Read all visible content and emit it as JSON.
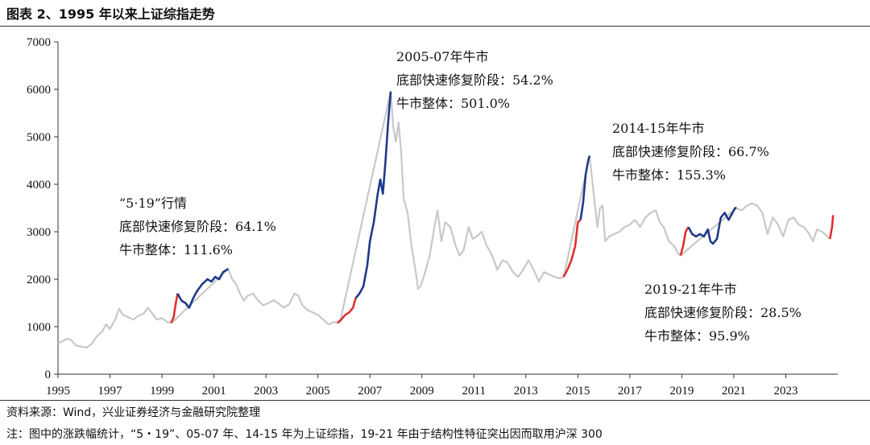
{
  "figure_title": "图表 2、1995 年以来上证综指走势",
  "source_text": "资料来源：Wind，兴业证券经济与金融研究院整理",
  "note_text": "注：图中的涨跌幅统计，“5・19”、05-07 年、14-15 年为上证综指，19-21 年由于结构性特征突出因而取用沪深 300",
  "colors": {
    "base": "#c8c8c8",
    "rapid": "#e03030",
    "bull": "#1f3a8a",
    "axis": "#333333"
  },
  "chart_data": {
    "type": "line",
    "title": "",
    "xlabel": "",
    "ylabel": "",
    "xlim": [
      1995,
      2025
    ],
    "ylim": [
      0,
      7000
    ],
    "yticks": [
      0,
      1000,
      2000,
      3000,
      4000,
      5000,
      6000,
      7000
    ],
    "ytick_labels": [
      "0",
      "1000",
      "2000",
      "3000",
      "4000",
      "5000",
      "6000",
      "7000"
    ],
    "xticks": [
      1995,
      1997,
      1999,
      2001,
      2003,
      2005,
      2007,
      2009,
      2011,
      2013,
      2015,
      2017,
      2019,
      2021,
      2023
    ],
    "xtick_labels": [
      "1995",
      "1997",
      "1999",
      "2001",
      "2003",
      "2005",
      "2007",
      "2009",
      "2011",
      "2013",
      "2015",
      "2017",
      "2019",
      "2021",
      "2023"
    ],
    "grid": false,
    "series": [
      {
        "role": "index",
        "points": [
          [
            1995.0,
            650
          ],
          [
            1995.2,
            700
          ],
          [
            1995.35,
            750
          ],
          [
            1995.5,
            720
          ],
          [
            1995.7,
            600
          ],
          [
            1995.9,
            580
          ],
          [
            1996.1,
            560
          ],
          [
            1996.3,
            640
          ],
          [
            1996.5,
            800
          ],
          [
            1996.7,
            900
          ],
          [
            1996.85,
            1050
          ],
          [
            1997.0,
            950
          ],
          [
            1997.2,
            1150
          ],
          [
            1997.35,
            1380
          ],
          [
            1997.5,
            1250
          ],
          [
            1997.7,
            1200
          ],
          [
            1997.9,
            1150
          ],
          [
            1998.1,
            1230
          ],
          [
            1998.3,
            1280
          ],
          [
            1998.45,
            1400
          ],
          [
            1998.6,
            1300
          ],
          [
            1998.8,
            1150
          ],
          [
            1999.0,
            1180
          ],
          [
            1999.2,
            1100
          ],
          [
            1999.35,
            1080
          ],
          [
            1999.45,
            1120
          ],
          [
            2001.55,
            2220
          ],
          [
            2001.7,
            2000
          ],
          [
            2001.85,
            1900
          ],
          [
            2002.0,
            1700
          ],
          [
            2002.15,
            1550
          ],
          [
            2002.3,
            1650
          ],
          [
            2002.5,
            1700
          ],
          [
            2002.7,
            1550
          ],
          [
            2002.9,
            1450
          ],
          [
            2003.1,
            1500
          ],
          [
            2003.3,
            1560
          ],
          [
            2003.5,
            1480
          ],
          [
            2003.7,
            1400
          ],
          [
            2003.9,
            1480
          ],
          [
            2004.1,
            1700
          ],
          [
            2004.25,
            1650
          ],
          [
            2004.4,
            1450
          ],
          [
            2004.6,
            1350
          ],
          [
            2004.8,
            1300
          ],
          [
            2005.0,
            1250
          ],
          [
            2005.2,
            1150
          ],
          [
            2005.4,
            1050
          ],
          [
            2005.6,
            1100
          ],
          [
            2005.75,
            1080
          ],
          [
            2005.85,
            1100
          ],
          [
            2007.8,
            5950
          ],
          [
            2007.9,
            5200
          ],
          [
            2008.0,
            4900
          ],
          [
            2008.1,
            5300
          ],
          [
            2008.2,
            4700
          ],
          [
            2008.3,
            3700
          ],
          [
            2008.45,
            3400
          ],
          [
            2008.6,
            2700
          ],
          [
            2008.75,
            2200
          ],
          [
            2008.85,
            1800
          ],
          [
            2008.95,
            1850
          ],
          [
            2009.1,
            2100
          ],
          [
            2009.3,
            2500
          ],
          [
            2009.45,
            3000
          ],
          [
            2009.6,
            3450
          ],
          [
            2009.75,
            2800
          ],
          [
            2009.9,
            3200
          ],
          [
            2010.1,
            3100
          ],
          [
            2010.3,
            2700
          ],
          [
            2010.45,
            2500
          ],
          [
            2010.6,
            2600
          ],
          [
            2010.8,
            3100
          ],
          [
            2010.95,
            2850
          ],
          [
            2011.1,
            2900
          ],
          [
            2011.3,
            3000
          ],
          [
            2011.5,
            2700
          ],
          [
            2011.7,
            2500
          ],
          [
            2011.9,
            2200
          ],
          [
            2012.1,
            2400
          ],
          [
            2012.3,
            2350
          ],
          [
            2012.5,
            2150
          ],
          [
            2012.7,
            2050
          ],
          [
            2012.9,
            2200
          ],
          [
            2013.1,
            2400
          ],
          [
            2013.3,
            2200
          ],
          [
            2013.5,
            1950
          ],
          [
            2013.7,
            2150
          ],
          [
            2013.9,
            2100
          ],
          [
            2014.1,
            2050
          ],
          [
            2014.3,
            2020
          ],
          [
            2014.45,
            2050
          ],
          [
            2015.45,
            4600
          ],
          [
            2015.55,
            4100
          ],
          [
            2015.65,
            3600
          ],
          [
            2015.75,
            3100
          ],
          [
            2015.85,
            3500
          ],
          [
            2015.95,
            3550
          ],
          [
            2016.05,
            2800
          ],
          [
            2016.2,
            2900
          ],
          [
            2016.4,
            2950
          ],
          [
            2016.6,
            3000
          ],
          [
            2016.8,
            3100
          ],
          [
            2017.0,
            3150
          ],
          [
            2017.2,
            3250
          ],
          [
            2017.4,
            3100
          ],
          [
            2017.6,
            3300
          ],
          [
            2017.8,
            3400
          ],
          [
            2018.0,
            3450
          ],
          [
            2018.15,
            3200
          ],
          [
            2018.3,
            3100
          ],
          [
            2018.5,
            2800
          ],
          [
            2018.7,
            2700
          ],
          [
            2018.85,
            2550
          ],
          [
            2018.95,
            2500
          ],
          [
            2021.1,
            3500
          ],
          [
            2021.3,
            3450
          ],
          [
            2021.5,
            3550
          ],
          [
            2021.7,
            3600
          ],
          [
            2021.9,
            3550
          ],
          [
            2022.1,
            3400
          ],
          [
            2022.3,
            2950
          ],
          [
            2022.5,
            3300
          ],
          [
            2022.7,
            3150
          ],
          [
            2022.9,
            2900
          ],
          [
            2023.1,
            3250
          ],
          [
            2023.3,
            3300
          ],
          [
            2023.5,
            3150
          ],
          [
            2023.7,
            3100
          ],
          [
            2023.9,
            2950
          ],
          [
            2024.05,
            2800
          ],
          [
            2024.2,
            3050
          ],
          [
            2024.4,
            3000
          ],
          [
            2024.6,
            2900
          ],
          [
            2024.7,
            2850
          ]
        ]
      },
      {
        "role": "rapid-recovery-1999",
        "points": [
          [
            1999.35,
            1080
          ],
          [
            1999.45,
            1200
          ],
          [
            1999.52,
            1450
          ],
          [
            1999.6,
            1700
          ]
        ]
      },
      {
        "role": "bull-1999",
        "points": [
          [
            1999.6,
            1700
          ],
          [
            1999.75,
            1550
          ],
          [
            1999.9,
            1500
          ],
          [
            2000.05,
            1400
          ],
          [
            2000.2,
            1600
          ],
          [
            2000.35,
            1750
          ],
          [
            2000.55,
            1900
          ],
          [
            2000.75,
            2000
          ],
          [
            2000.9,
            1950
          ],
          [
            2001.05,
            2050
          ],
          [
            2001.2,
            2000
          ],
          [
            2001.35,
            2150
          ],
          [
            2001.5,
            2200
          ],
          [
            2001.55,
            2220
          ]
        ]
      },
      {
        "role": "rapid-recovery-2005",
        "points": [
          [
            2005.75,
            1080
          ],
          [
            2005.9,
            1150
          ],
          [
            2006.05,
            1250
          ],
          [
            2006.2,
            1300
          ],
          [
            2006.35,
            1400
          ],
          [
            2006.45,
            1600
          ]
        ]
      },
      {
        "role": "bull-2005-07",
        "points": [
          [
            2006.45,
            1600
          ],
          [
            2006.6,
            1700
          ],
          [
            2006.75,
            1850
          ],
          [
            2006.9,
            2300
          ],
          [
            2007.0,
            2800
          ],
          [
            2007.15,
            3200
          ],
          [
            2007.3,
            3800
          ],
          [
            2007.4,
            4100
          ],
          [
            2007.5,
            3800
          ],
          [
            2007.6,
            4500
          ],
          [
            2007.7,
            5300
          ],
          [
            2007.8,
            5950
          ]
        ]
      },
      {
        "role": "rapid-recovery-2014",
        "points": [
          [
            2014.45,
            2050
          ],
          [
            2014.6,
            2200
          ],
          [
            2014.75,
            2400
          ],
          [
            2014.9,
            2700
          ],
          [
            2015.0,
            3200
          ],
          [
            2015.1,
            3250
          ]
        ]
      },
      {
        "role": "bull-2014-15",
        "points": [
          [
            2015.1,
            3250
          ],
          [
            2015.2,
            3600
          ],
          [
            2015.3,
            4200
          ],
          [
            2015.4,
            4500
          ],
          [
            2015.45,
            4600
          ]
        ]
      },
      {
        "role": "rapid-recovery-2019",
        "points": [
          [
            2018.95,
            2500
          ],
          [
            2019.05,
            2700
          ],
          [
            2019.15,
            3000
          ],
          [
            2019.25,
            3100
          ]
        ]
      },
      {
        "role": "bull-2019-21",
        "points": [
          [
            2019.25,
            3100
          ],
          [
            2019.4,
            2950
          ],
          [
            2019.55,
            2900
          ],
          [
            2019.7,
            2950
          ],
          [
            2019.85,
            2900
          ],
          [
            2020.0,
            3050
          ],
          [
            2020.1,
            2800
          ],
          [
            2020.2,
            2750
          ],
          [
            2020.35,
            2850
          ],
          [
            2020.5,
            3300
          ],
          [
            2020.65,
            3400
          ],
          [
            2020.8,
            3250
          ],
          [
            2020.95,
            3400
          ],
          [
            2021.05,
            3500
          ],
          [
            2021.1,
            3500
          ]
        ]
      },
      {
        "role": "rapid-recovery-2024",
        "points": [
          [
            2024.7,
            2850
          ],
          [
            2024.78,
            3100
          ],
          [
            2024.82,
            3350
          ]
        ]
      }
    ],
    "annotations": [
      {
        "lines": [
          "“5·19”行情",
          "底部快速修复阶段：64.1%",
          "牛市整体：111.6%"
        ]
      },
      {
        "lines": [
          "2005-07年牛市",
          "底部快速修复阶段：54.2%",
          "牛市整体：501.0%"
        ]
      },
      {
        "lines": [
          "2014-15年牛市",
          "底部快速修复阶段：66.7%",
          "牛市整体：155.3%"
        ]
      },
      {
        "lines": [
          "2019-21年牛市",
          "底部快速修复阶段：28.5%",
          "牛市整体：95.9%"
        ]
      }
    ]
  }
}
